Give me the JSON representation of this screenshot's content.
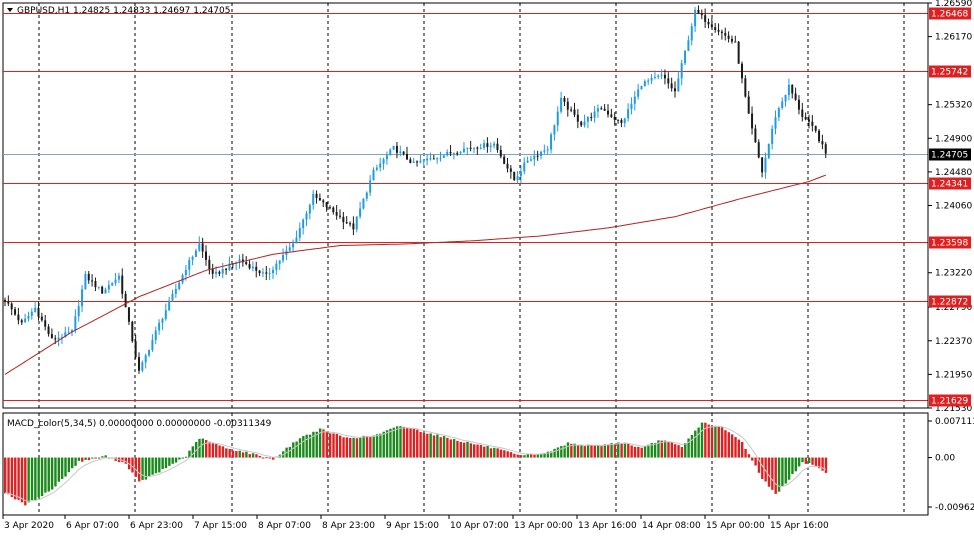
{
  "header": {
    "symbol_line": "GBPUSD,H1  1.24825 1.24833 1.24697 1.24705",
    "macd_line": "MACD_color(5,34,5) 0.00000000 0.00000000 -0.00311349"
  },
  "colors": {
    "bull": "#1e9be6",
    "bear": "#1a1a1a",
    "level": "#e02020",
    "ma": "#b22222",
    "hist_up": "#1a8a1a",
    "hist_down": "#e02020",
    "signal": "#c8c8c8",
    "bid_line": "#7fa7b7"
  },
  "chart_data": [
    {
      "type": "candlestick",
      "title": "GBPUSD,H1",
      "ohlc_last": {
        "open": 1.24825,
        "high": 1.24833,
        "low": 1.24697,
        "close": 1.24705
      },
      "ylim": [
        1.2153,
        1.2659
      ],
      "y_ticks": [
        "1.26590",
        "1.26170",
        "1.25320",
        "1.24900",
        "1.24480",
        "1.24060",
        "1.23220",
        "1.22790",
        "1.22370",
        "1.21950",
        "1.21530"
      ],
      "x_ticks": [
        "3 Apr 2020",
        "6 Apr 07:00",
        "6 Apr 23:00",
        "7 Apr 15:00",
        "8 Apr 07:00",
        "8 Apr 23:00",
        "9 Apr 15:00",
        "10 Apr 07:00",
        "13 Apr 00:00",
        "13 Apr 16:00",
        "14 Apr 08:00",
        "15 Apr 00:00",
        "15 Apr 16:00"
      ],
      "levels": [
        {
          "label": "1.26468",
          "value": 1.26468
        },
        {
          "label": "1.25742",
          "value": 1.25742
        },
        {
          "label": "1.24341",
          "value": 1.24341
        },
        {
          "label": "1.23598",
          "value": 1.23598
        },
        {
          "label": "1.22872",
          "value": 1.22872
        },
        {
          "label": "1.21629",
          "value": 1.21629
        }
      ],
      "current_price": {
        "label": "1.24705",
        "value": 1.24705
      },
      "moving_average_path": [
        {
          "bar": 0,
          "y": 1.2195
        },
        {
          "bar": 20,
          "y": 1.2248
        },
        {
          "bar": 40,
          "y": 1.2292
        },
        {
          "bar": 60,
          "y": 1.2325
        },
        {
          "bar": 80,
          "y": 1.2345
        },
        {
          "bar": 100,
          "y": 1.2356
        },
        {
          "bar": 120,
          "y": 1.2358
        },
        {
          "bar": 140,
          "y": 1.2362
        },
        {
          "bar": 160,
          "y": 1.2368
        },
        {
          "bar": 180,
          "y": 1.2378
        },
        {
          "bar": 200,
          "y": 1.2392
        },
        {
          "bar": 220,
          "y": 1.2415
        },
        {
          "bar": 240,
          "y": 1.2436
        },
        {
          "bar": 245,
          "y": 1.2444
        }
      ],
      "price_path": [
        {
          "bar": 0,
          "y": 1.2288
        },
        {
          "bar": 5,
          "y": 1.2258
        },
        {
          "bar": 9,
          "y": 1.2278
        },
        {
          "bar": 14,
          "y": 1.2238
        },
        {
          "bar": 20,
          "y": 1.2248
        },
        {
          "bar": 24,
          "y": 1.2318
        },
        {
          "bar": 29,
          "y": 1.2298
        },
        {
          "bar": 34,
          "y": 1.2318
        },
        {
          "bar": 40,
          "y": 1.2198
        },
        {
          "bar": 46,
          "y": 1.2258
        },
        {
          "bar": 54,
          "y": 1.2328
        },
        {
          "bar": 58,
          "y": 1.2358
        },
        {
          "bar": 62,
          "y": 1.2318
        },
        {
          "bar": 70,
          "y": 1.2338
        },
        {
          "bar": 78,
          "y": 1.2318
        },
        {
          "bar": 86,
          "y": 1.2358
        },
        {
          "bar": 92,
          "y": 1.2418
        },
        {
          "bar": 98,
          "y": 1.2398
        },
        {
          "bar": 104,
          "y": 1.2378
        },
        {
          "bar": 110,
          "y": 1.2448
        },
        {
          "bar": 116,
          "y": 1.2478
        },
        {
          "bar": 122,
          "y": 1.2458
        },
        {
          "bar": 130,
          "y": 1.2468
        },
        {
          "bar": 138,
          "y": 1.2478
        },
        {
          "bar": 146,
          "y": 1.2483
        },
        {
          "bar": 152,
          "y": 1.2438
        },
        {
          "bar": 156,
          "y": 1.2463
        },
        {
          "bar": 162,
          "y": 1.2478
        },
        {
          "bar": 166,
          "y": 1.2538
        },
        {
          "bar": 172,
          "y": 1.2508
        },
        {
          "bar": 178,
          "y": 1.2528
        },
        {
          "bar": 184,
          "y": 1.2508
        },
        {
          "bar": 190,
          "y": 1.2558
        },
        {
          "bar": 196,
          "y": 1.2568
        },
        {
          "bar": 200,
          "y": 1.2548
        },
        {
          "bar": 206,
          "y": 1.2648
        },
        {
          "bar": 212,
          "y": 1.2628
        },
        {
          "bar": 218,
          "y": 1.2608
        },
        {
          "bar": 222,
          "y": 1.2518
        },
        {
          "bar": 226,
          "y": 1.2448
        },
        {
          "bar": 230,
          "y": 1.2518
        },
        {
          "bar": 234,
          "y": 1.2555
        },
        {
          "bar": 238,
          "y": 1.2518
        },
        {
          "bar": 242,
          "y": 1.2498
        },
        {
          "bar": 245,
          "y": 1.24705
        }
      ]
    },
    {
      "type": "histogram",
      "title": "MACD_color(5,34,5)",
      "ylim": [
        -0.0096219,
        0.0071138
      ],
      "y_ticks": [
        "0.0071130",
        "0.00",
        "-0.0096219"
      ],
      "x_ticks": [
        "3 Apr 2020",
        "6 Apr 07:00",
        "6 Apr 23:00",
        "7 Apr 15:00",
        "8 Apr 07:00",
        "8 Apr 23:00",
        "9 Apr 15:00",
        "10 Apr 07:00",
        "13 Apr 00:00",
        "13 Apr 16:00",
        "14 Apr 08:00",
        "15 Apr 00:00",
        "15 Apr 16:00"
      ],
      "path": [
        {
          "bar": 0,
          "y": -0.0068
        },
        {
          "bar": 6,
          "y": -0.0092
        },
        {
          "bar": 14,
          "y": -0.0062
        },
        {
          "bar": 22,
          "y": -0.0008
        },
        {
          "bar": 30,
          "y": 0.0003
        },
        {
          "bar": 36,
          "y": -0.0012
        },
        {
          "bar": 40,
          "y": -0.0048
        },
        {
          "bar": 46,
          "y": -0.0028
        },
        {
          "bar": 54,
          "y": 0.0003
        },
        {
          "bar": 58,
          "y": 0.0038
        },
        {
          "bar": 66,
          "y": 0.0018
        },
        {
          "bar": 72,
          "y": 0.001
        },
        {
          "bar": 80,
          "y": -0.0003
        },
        {
          "bar": 88,
          "y": 0.0038
        },
        {
          "bar": 94,
          "y": 0.0055
        },
        {
          "bar": 102,
          "y": 0.0038
        },
        {
          "bar": 110,
          "y": 0.0042
        },
        {
          "bar": 118,
          "y": 0.0062
        },
        {
          "bar": 126,
          "y": 0.0048
        },
        {
          "bar": 136,
          "y": 0.0032
        },
        {
          "bar": 146,
          "y": 0.0018
        },
        {
          "bar": 154,
          "y": 0.0003
        },
        {
          "bar": 162,
          "y": 0.001
        },
        {
          "bar": 168,
          "y": 0.0028
        },
        {
          "bar": 176,
          "y": 0.0022
        },
        {
          "bar": 184,
          "y": 0.003
        },
        {
          "bar": 190,
          "y": 0.0018
        },
        {
          "bar": 196,
          "y": 0.0035
        },
        {
          "bar": 202,
          "y": 0.002
        },
        {
          "bar": 208,
          "y": 0.0068
        },
        {
          "bar": 214,
          "y": 0.0058
        },
        {
          "bar": 220,
          "y": 0.003
        },
        {
          "bar": 226,
          "y": -0.004
        },
        {
          "bar": 230,
          "y": -0.0072
        },
        {
          "bar": 234,
          "y": -0.0042
        },
        {
          "bar": 238,
          "y": -0.001
        },
        {
          "bar": 242,
          "y": -0.0015
        },
        {
          "bar": 245,
          "y": -0.0031
        }
      ]
    }
  ]
}
